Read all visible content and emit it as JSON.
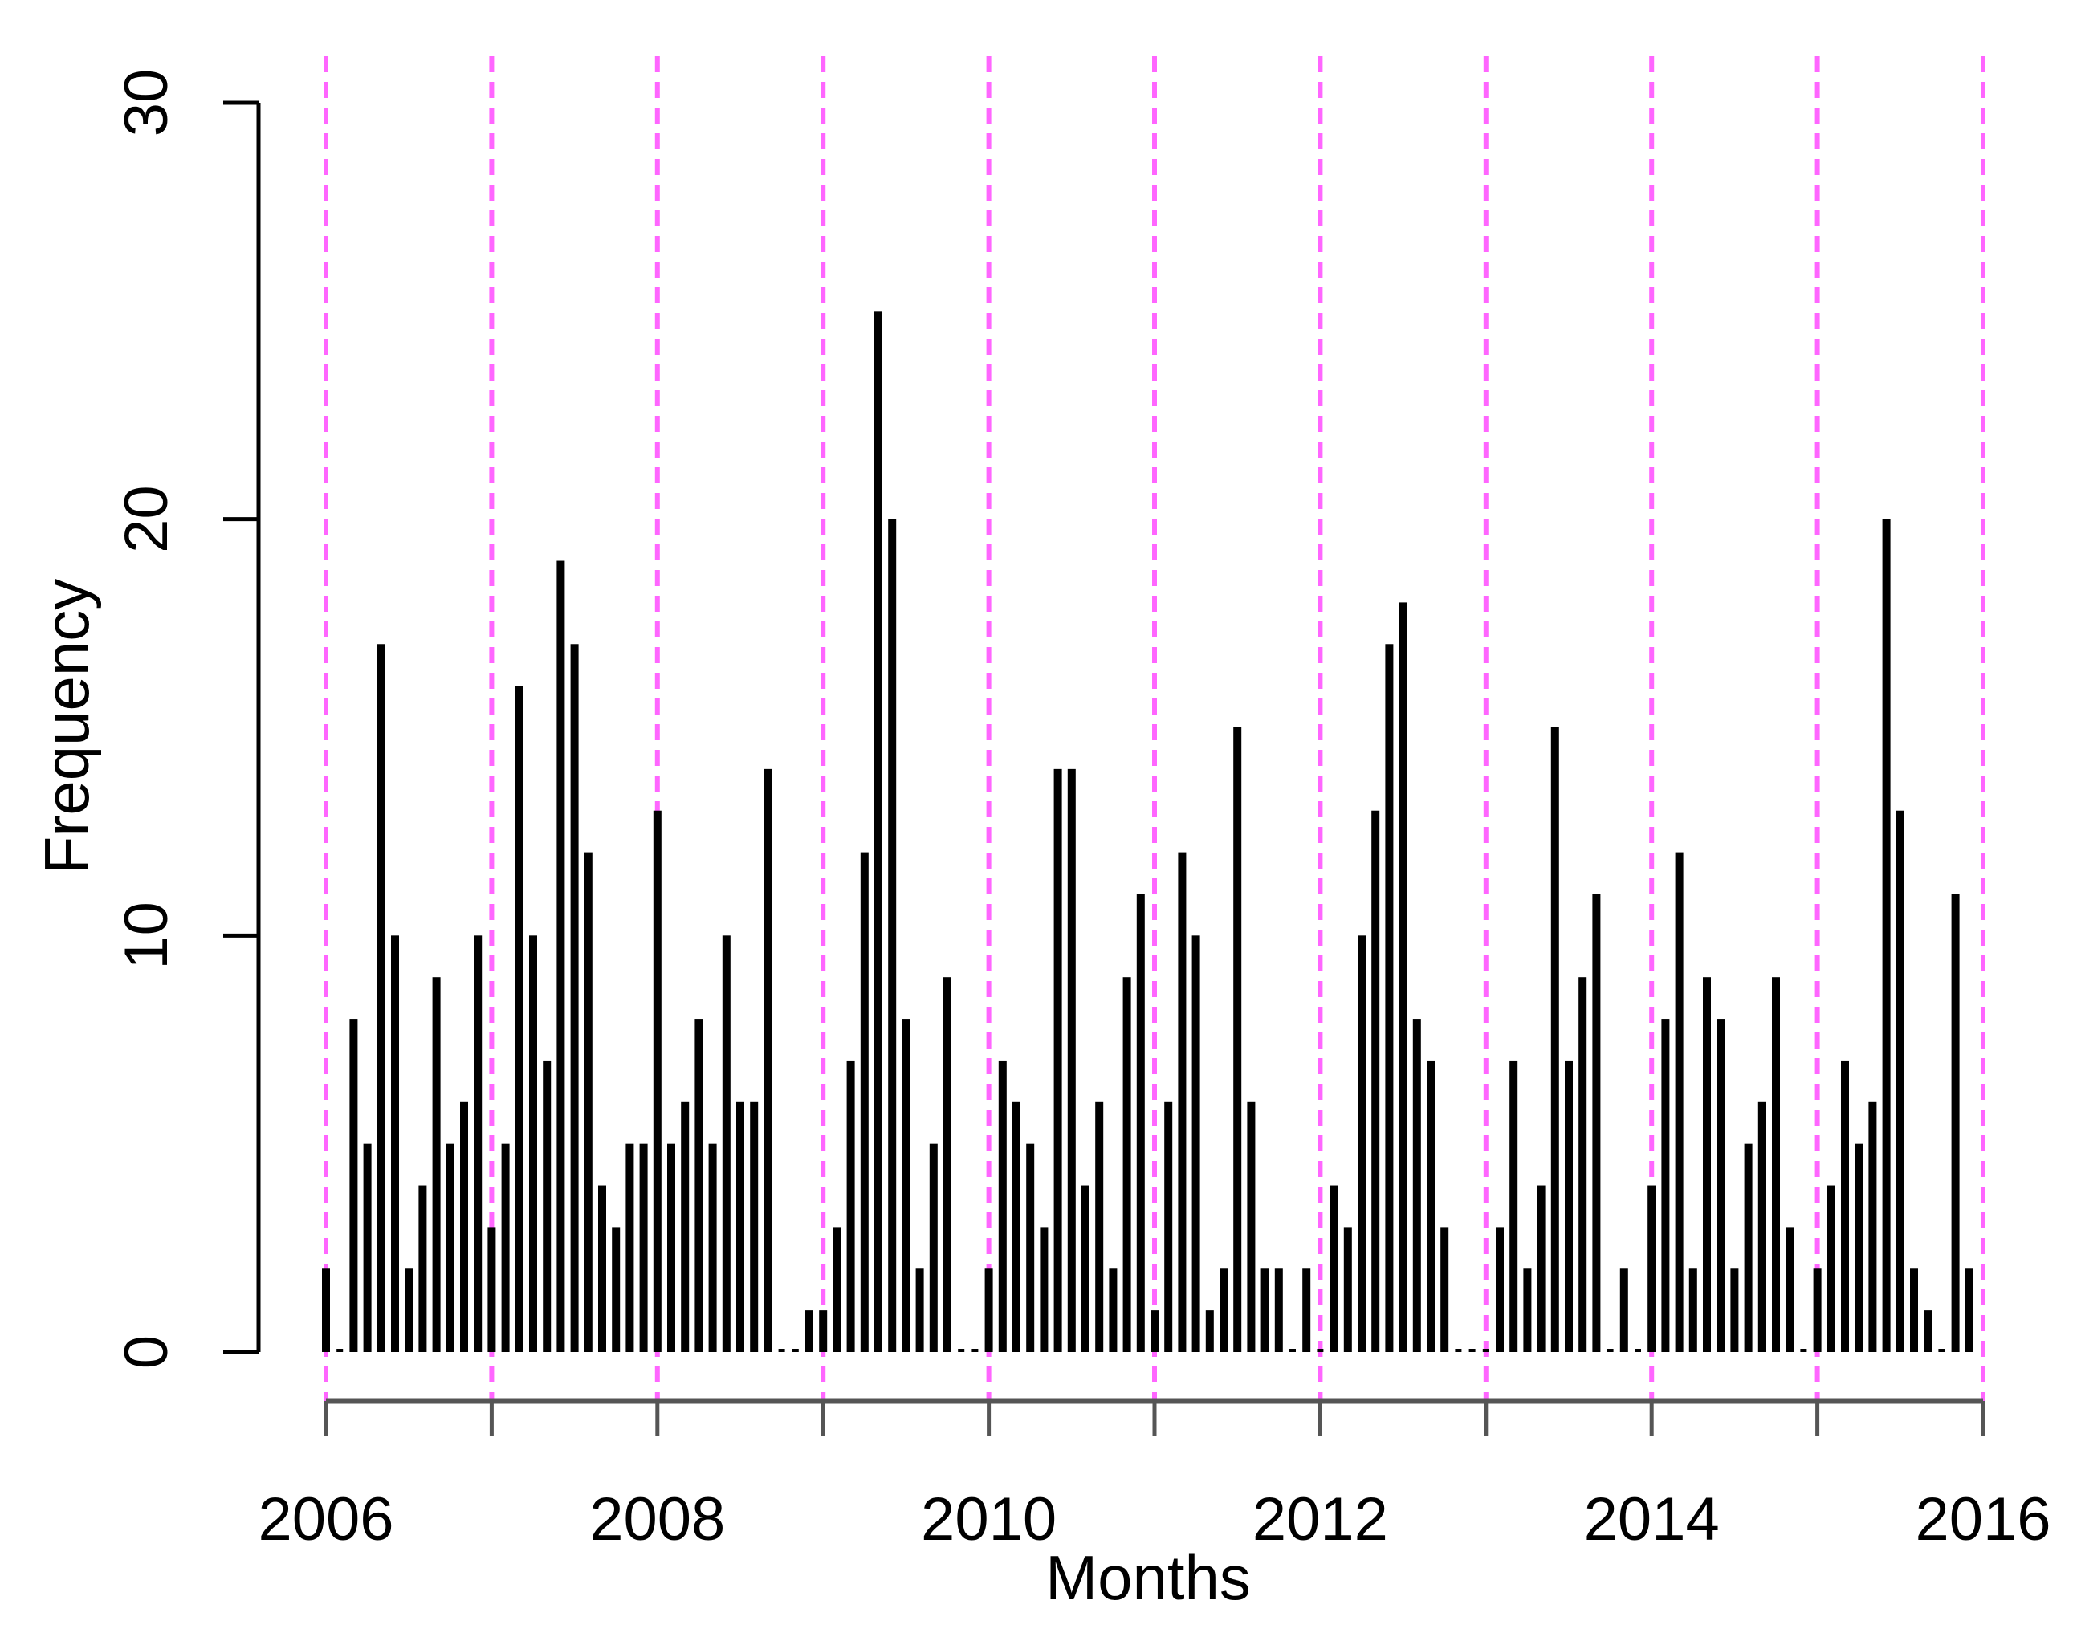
{
  "chart_data": {
    "type": "bar",
    "xlabel": "Months",
    "ylabel": "Frequency",
    "xlim": [
      2006,
      2016
    ],
    "ylim": [
      0,
      30
    ],
    "x_ticks": [
      "2006",
      "2008",
      "2010",
      "2012",
      "2014",
      "2016"
    ],
    "y_ticks": [
      "0",
      "10",
      "20",
      "30"
    ],
    "year_lines": [
      2006,
      2007,
      2008,
      2009,
      2010,
      2011,
      2012,
      2013,
      2014,
      2015,
      2016
    ],
    "year_line_color": "#ff66ff",
    "bar_color": "#000000",
    "series": [
      {
        "year": 2006,
        "values": [
          2,
          0,
          8,
          5,
          17,
          10,
          2,
          4,
          9,
          5,
          6,
          10
        ]
      },
      {
        "year": 2007,
        "values": [
          3,
          5,
          16,
          10,
          7,
          19,
          17,
          12,
          4,
          3,
          5,
          5
        ]
      },
      {
        "year": 2008,
        "values": [
          13,
          5,
          6,
          8,
          5,
          10,
          6,
          6,
          14,
          0,
          0,
          1
        ]
      },
      {
        "year": 2009,
        "values": [
          1,
          3,
          7,
          12,
          25,
          20,
          8,
          2,
          5,
          9,
          0,
          0
        ]
      },
      {
        "year": 2010,
        "values": [
          2,
          7,
          6,
          5,
          3,
          14,
          14,
          4,
          6,
          2,
          9,
          11
        ]
      },
      {
        "year": 2011,
        "values": [
          1,
          6,
          12,
          10,
          1,
          2,
          15,
          6,
          2,
          2,
          0,
          2
        ]
      },
      {
        "year": 2012,
        "values": [
          0,
          4,
          3,
          10,
          13,
          17,
          18,
          8,
          7,
          3,
          0,
          0
        ]
      },
      {
        "year": 2013,
        "values": [
          0,
          3,
          7,
          2,
          4,
          15,
          7,
          9,
          11,
          0,
          2,
          0
        ]
      },
      {
        "year": 2014,
        "values": [
          4,
          8,
          12,
          2,
          9,
          8,
          2,
          5,
          6,
          9,
          3,
          0
        ]
      },
      {
        "year": 2015,
        "values": [
          2,
          4,
          7,
          5,
          6,
          20,
          13,
          2,
          1,
          0,
          11,
          2
        ]
      }
    ]
  }
}
